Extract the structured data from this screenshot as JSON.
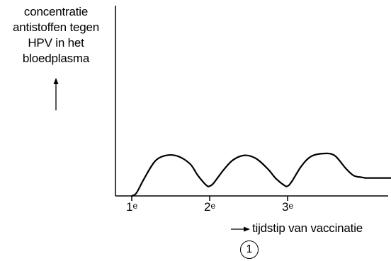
{
  "chart_data": {
    "type": "line",
    "ylabel_lines": [
      "concentratie",
      "antistoffen tegen",
      "HPV in het",
      "bloedplasma"
    ],
    "xlabel": "tijdstip van vaccinatie",
    "ticks": [
      {
        "base": "1",
        "sup": "e"
      },
      {
        "base": "2",
        "sup": "e"
      },
      {
        "base": "3",
        "sup": "e"
      }
    ],
    "marker": "1",
    "series": [
      {
        "x": [
          0,
          0.06,
          0.16,
          0.3,
          0.45,
          0.6,
          0.75,
          0.85,
          0.96,
          1.0,
          1.05,
          1.18,
          1.3,
          1.45,
          1.6,
          1.75,
          1.85,
          1.96,
          2.0,
          2.05,
          2.18,
          2.3,
          2.45,
          2.6,
          2.75,
          2.85,
          2.96,
          3.0,
          3.06,
          3.15,
          3.3,
          3.6,
          3.8
        ],
        "y": [
          0,
          0.05,
          0.3,
          0.6,
          0.7,
          0.68,
          0.55,
          0.35,
          0.18,
          0.17,
          0.22,
          0.45,
          0.62,
          0.7,
          0.64,
          0.46,
          0.3,
          0.18,
          0.17,
          0.24,
          0.52,
          0.68,
          0.73,
          0.7,
          0.47,
          0.35,
          0.32,
          0.31,
          0.31,
          0.31,
          0.31,
          0.31,
          0.31
        ]
      }
    ],
    "grid": false,
    "legend": "none"
  }
}
